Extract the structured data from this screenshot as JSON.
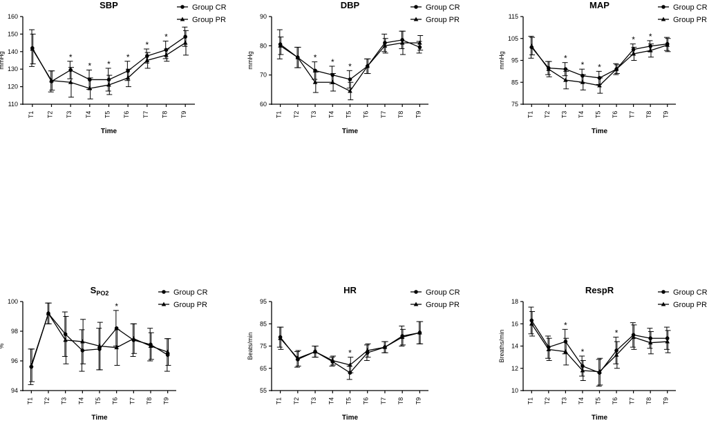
{
  "figure": {
    "markers": {
      "circle": "Group CR",
      "triangle": "Group PR"
    }
  },
  "chart_data": [
    {
      "id": "sbp",
      "type": "line",
      "title": "SBP",
      "title_sub": "",
      "xlabel": "Time",
      "ylabel": "mmHg",
      "categories": [
        "T1",
        "T2",
        "T3",
        "T4",
        "T5",
        "T6",
        "T7",
        "T8",
        "T9"
      ],
      "ylim": [
        110,
        160
      ],
      "yticks": [
        "110",
        "120",
        "130",
        "140",
        "150",
        "160"
      ],
      "series": [
        {
          "name": "Group CR",
          "marker": "circle",
          "values": [
            142,
            123,
            129.5,
            124,
            124,
            129,
            137.5,
            141,
            148.5
          ],
          "errors": [
            10.5,
            6,
            5,
            5.5,
            6.5,
            5.5,
            4,
            5,
            5.5
          ]
        },
        {
          "name": "Group PR",
          "marker": "triangle",
          "values": [
            141.5,
            123.5,
            122.5,
            119,
            121,
            125,
            135,
            138,
            145
          ],
          "errors": [
            8.5,
            5.5,
            8.5,
            6,
            5.5,
            5,
            4.5,
            3.5,
            7
          ]
        }
      ],
      "annotations": [
        {
          "x": "T3",
          "text": "*"
        },
        {
          "x": "T4",
          "text": "*"
        },
        {
          "x": "T5",
          "text": "*"
        },
        {
          "x": "T6",
          "text": "*"
        },
        {
          "x": "T7",
          "text": "*"
        },
        {
          "x": "T8",
          "text": "*"
        }
      ]
    },
    {
      "id": "dbp",
      "type": "line",
      "title": "DBP",
      "title_sub": "",
      "xlabel": "Time",
      "ylabel": "mmHg",
      "categories": [
        "T1",
        "T2",
        "T3",
        "T4",
        "T5",
        "T6",
        "T7",
        "T8",
        "T9"
      ],
      "ylim": [
        60,
        90
      ],
      "yticks": [
        "60",
        "70",
        "80",
        "90"
      ],
      "series": [
        {
          "name": "Group CR",
          "marker": "circle",
          "values": [
            80.5,
            76,
            71.5,
            70,
            68.5,
            73,
            81,
            82,
            79.5
          ],
          "errors": [
            5,
            3.5,
            3,
            3,
            3,
            2.5,
            3,
            3,
            2
          ]
        },
        {
          "name": "Group PR",
          "marker": "triangle",
          "values": [
            80,
            76,
            67.5,
            67.5,
            64.5,
            73,
            80,
            81,
            81
          ],
          "errors": [
            3,
            3.5,
            3.5,
            3,
            3,
            2.5,
            2.5,
            4,
            2.5
          ]
        }
      ],
      "annotations": [
        {
          "x": "T3",
          "text": "*"
        },
        {
          "x": "T4",
          "text": "*"
        },
        {
          "x": "T5",
          "text": "*"
        }
      ]
    },
    {
      "id": "map",
      "type": "line",
      "title": "MAP",
      "title_sub": "",
      "xlabel": "Time",
      "ylabel": "mmHg",
      "categories": [
        "T1",
        "T2",
        "T3",
        "T4",
        "T5",
        "T6",
        "T7",
        "T8",
        "T9"
      ],
      "ylim": [
        75,
        115
      ],
      "yticks": [
        "75",
        "85",
        "95",
        "105",
        "115"
      ],
      "series": [
        {
          "name": "Group CR",
          "marker": "circle",
          "values": [
            101,
            91.5,
            91,
            88,
            87,
            91,
            100,
            101.5,
            102.5
          ],
          "errors": [
            5,
            3,
            3,
            3,
            3,
            2.5,
            2.5,
            2.5,
            3
          ]
        },
        {
          "name": "Group PR",
          "marker": "triangle",
          "values": [
            101.5,
            91,
            86,
            85,
            83.5,
            91,
            98,
            99.5,
            102
          ],
          "errors": [
            4,
            3.5,
            4,
            3.5,
            3.5,
            2,
            3,
            3,
            3
          ]
        }
      ],
      "annotations": [
        {
          "x": "T3",
          "text": "*"
        },
        {
          "x": "T4",
          "text": "*"
        },
        {
          "x": "T5",
          "text": "*"
        },
        {
          "x": "T7",
          "text": "*"
        },
        {
          "x": "T8",
          "text": "*"
        }
      ]
    },
    {
      "id": "spo2",
      "type": "line",
      "title": "S",
      "title_sub": "PO",
      "title_sub_tail": "2",
      "xlabel": "Time",
      "ylabel": "%",
      "categories": [
        "T1",
        "T2",
        "T3",
        "T4",
        "T5",
        "T6",
        "T7",
        "T8",
        "T9"
      ],
      "ylim": [
        94,
        100
      ],
      "yticks": [
        "94",
        "96",
        "98",
        "100"
      ],
      "series": [
        {
          "name": "Group CR",
          "marker": "circle",
          "values": [
            95.6,
            99.2,
            97.8,
            96.7,
            96.8,
            98.2,
            97.4,
            97.1,
            96.4
          ],
          "errors": [
            1.2,
            0.7,
            1.5,
            1.4,
            1.4,
            1.2,
            1.1,
            1.1,
            1.1
          ]
        },
        {
          "name": "Group PR",
          "marker": "triangle",
          "values": [
            95.7,
            99.2,
            97.4,
            97.3,
            97.0,
            96.9,
            97.5,
            97.0,
            96.6
          ],
          "errors": [
            1.1,
            0.7,
            1.6,
            1.5,
            1.6,
            1.2,
            1.0,
            0.9,
            0.9
          ]
        }
      ],
      "annotations": [
        {
          "x": "T6",
          "text": "*"
        }
      ]
    },
    {
      "id": "hr",
      "type": "line",
      "title": "HR",
      "title_sub": "",
      "xlabel": "Time",
      "ylabel": "Beats/min",
      "categories": [
        "T1",
        "T2",
        "T3",
        "T4",
        "T5",
        "T6",
        "T7",
        "T8",
        "T9"
      ],
      "ylim": [
        55,
        95
      ],
      "yticks": [
        "55",
        "65",
        "75",
        "85",
        "95"
      ],
      "series": [
        {
          "name": "Group CR",
          "marker": "circle",
          "values": [
            79,
            69,
            72.5,
            68,
            63,
            72,
            74.5,
            79.5,
            81
          ],
          "errors": [
            4.5,
            3.5,
            2.5,
            2,
            3,
            3.5,
            2.5,
            4.5,
            5
          ]
        },
        {
          "name": "Group PR",
          "marker": "triangle",
          "values": [
            78.5,
            69.5,
            72.5,
            68.5,
            66.5,
            73,
            74.5,
            79,
            81
          ],
          "errors": [
            5,
            3.5,
            2.5,
            2,
            3.5,
            3,
            2.5,
            3.5,
            5
          ]
        }
      ],
      "annotations": [
        {
          "x": "T5",
          "text": "*"
        }
      ]
    },
    {
      "id": "respr",
      "type": "line",
      "title": "RespR",
      "title_sub": "",
      "xlabel": "Time",
      "ylabel": "Breaths/min",
      "categories": [
        "T1",
        "T2",
        "T3",
        "T4",
        "T5",
        "T6",
        "T7",
        "T8",
        "T9"
      ],
      "ylim": [
        10,
        18
      ],
      "yticks": [
        "10",
        "12",
        "14",
        "16",
        "18"
      ],
      "series": [
        {
          "name": "Group CR",
          "marker": "circle",
          "values": [
            16.3,
            13.9,
            14.4,
            12.2,
            11.6,
            13.6,
            15.0,
            14.7,
            14.7
          ],
          "errors": [
            1.2,
            1.0,
            1.1,
            0.9,
            1.2,
            1.2,
            1.1,
            0.9,
            1.0
          ]
        },
        {
          "name": "Group PR",
          "marker": "triangle",
          "values": [
            16.0,
            13.7,
            13.5,
            11.8,
            11.7,
            13.2,
            14.8,
            14.3,
            14.4
          ],
          "errors": [
            1.1,
            1.0,
            1.2,
            0.9,
            1.2,
            1.2,
            1.1,
            1.0,
            1.0
          ]
        }
      ],
      "annotations": [
        {
          "x": "T3",
          "text": "*"
        },
        {
          "x": "T4",
          "text": "*"
        },
        {
          "x": "T6",
          "text": "*"
        }
      ]
    }
  ]
}
